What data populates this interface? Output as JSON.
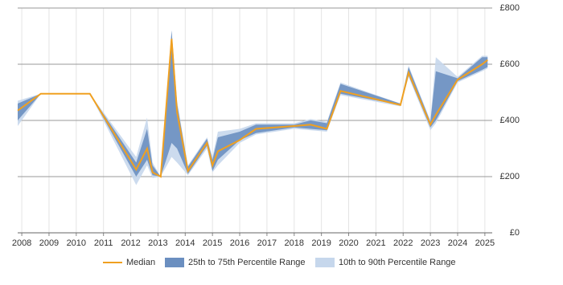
{
  "chart_data": {
    "type": "line",
    "x": [
      2007.85,
      2008.7,
      2010.5,
      2012.2,
      2012.6,
      2012.8,
      2013.1,
      2013.5,
      2013.7,
      2014.1,
      2014.8,
      2015.0,
      2015.2,
      2016.0,
      2016.6,
      2018.0,
      2018.6,
      2019.2,
      2019.7,
      2021.9,
      2022.2,
      2023.0,
      2023.2,
      2024.0,
      2024.9,
      2025.1
    ],
    "series": [
      {
        "name": "Median",
        "color": "#f0a020",
        "values": [
          435,
          495,
          495,
          225,
          300,
          215,
          200,
          690,
          430,
          220,
          320,
          240,
          290,
          330,
          370,
          380,
          385,
          370,
          505,
          455,
          570,
          385,
          420,
          545,
          600,
          615
        ]
      }
    ],
    "bands": [
      {
        "name": "10th to 90th Percentile Range",
        "color": "#c6d7ec",
        "low": [
          380,
          495,
          495,
          170,
          240,
          195,
          200,
          270,
          250,
          205,
          300,
          215,
          240,
          320,
          350,
          370,
          365,
          360,
          490,
          450,
          555,
          365,
          390,
          535,
          575,
          585
        ],
        "high": [
          470,
          495,
          495,
          270,
          410,
          250,
          200,
          720,
          470,
          240,
          340,
          270,
          360,
          370,
          390,
          390,
          405,
          395,
          535,
          460,
          595,
          400,
          625,
          555,
          630,
          630
        ]
      },
      {
        "name": "25th to 75th Percentile Range",
        "color": "#6b8fc0",
        "low": [
          400,
          495,
          495,
          200,
          260,
          205,
          200,
          320,
          300,
          210,
          310,
          220,
          260,
          330,
          355,
          375,
          370,
          365,
          495,
          455,
          560,
          375,
          400,
          540,
          580,
          590
        ],
        "high": [
          460,
          495,
          495,
          250,
          370,
          240,
          200,
          720,
          460,
          235,
          335,
          260,
          340,
          360,
          385,
          385,
          400,
          390,
          530,
          460,
          590,
          395,
          575,
          550,
          625,
          625
        ]
      }
    ],
    "xlim": [
      2007.85,
      2025.27
    ],
    "xticks": [
      2008,
      2009,
      2010,
      2011,
      2012,
      2013,
      2014,
      2015,
      2016,
      2017,
      2018,
      2019,
      2020,
      2021,
      2022,
      2023,
      2024,
      2025
    ],
    "ylim": [
      0,
      800
    ],
    "yticks": [
      {
        "value": 0,
        "label": "£0"
      },
      {
        "value": 200,
        "label": "£200"
      },
      {
        "value": 400,
        "label": "£400"
      },
      {
        "value": 600,
        "label": "£600"
      },
      {
        "value": 800,
        "label": "£800"
      }
    ],
    "grid": true,
    "legend": "bottom"
  }
}
